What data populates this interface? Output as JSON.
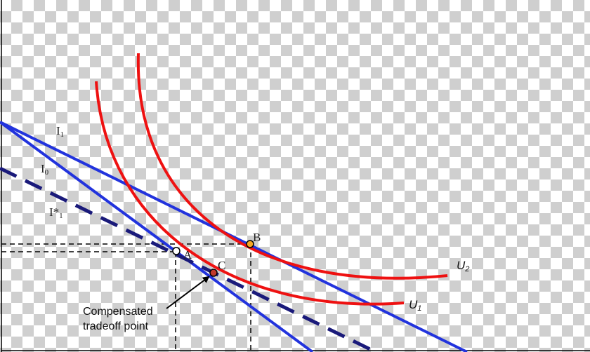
{
  "diagram": {
    "lines": {
      "i1": {
        "label": "I",
        "sub": "1",
        "color": "#2233dd"
      },
      "i0": {
        "label": "I",
        "sub": "0",
        "color": "#2233dd"
      },
      "istar1": {
        "label": "I*",
        "sub": "1",
        "color": "#1a1a7a"
      }
    },
    "curves": {
      "u1": {
        "label": "U",
        "sub": "1",
        "color": "#ee1111"
      },
      "u2": {
        "label": "U",
        "sub": "2",
        "color": "#ee1111"
      }
    },
    "points": {
      "a": {
        "label": "A",
        "color": "#ffffff"
      },
      "b": {
        "label": "B",
        "color": "#f5a623"
      },
      "c": {
        "label": "C",
        "color": "#c0392b"
      }
    },
    "annotation": {
      "line1": "Compensated",
      "line2": "tradeoff point"
    }
  }
}
